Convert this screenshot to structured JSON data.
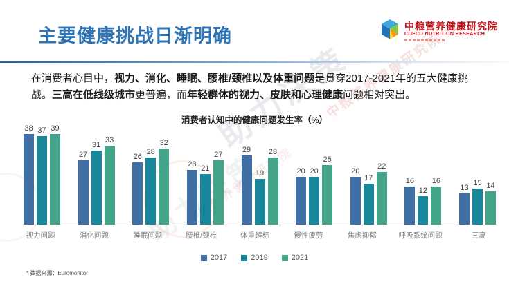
{
  "header": {
    "title": "主要健康挑战日渐明确",
    "logo": {
      "name_cn": "中粮营养健康研究院",
      "name_en": "COFCO NUTRITION RESEARCH",
      "brand_red": "#C3151C"
    }
  },
  "intro": {
    "segments": [
      {
        "text": "在消费者心目中，",
        "bold": false
      },
      {
        "text": "视力、消化、睡眠、腰椎/颈椎以及体重问题",
        "bold": true
      },
      {
        "text": "是贯穿2017-2021年的五大健康挑战。",
        "bold": false
      },
      {
        "text": "三高在低线级城市",
        "bold": true
      },
      {
        "text": "更普遍，而",
        "bold": false
      },
      {
        "text": "年轻群体的视力、皮肤和心理健康",
        "bold": true
      },
      {
        "text": "问题相对突出。",
        "bold": false
      }
    ]
  },
  "chart_data": {
    "type": "bar",
    "title": "消费者认知中的健康问题发生率（%）",
    "categories": [
      "视力问题",
      "消化问题",
      "睡眠问题",
      "腰椎/颈椎",
      "体重超标",
      "慢性疲劳",
      "焦虑抑郁",
      "呼吸系统问题",
      "三高"
    ],
    "series": [
      {
        "name": "2017",
        "color": "#3F6FA4",
        "values": [
          38,
          27,
          26,
          23,
          29,
          20,
          20,
          16,
          13
        ]
      },
      {
        "name": "2019",
        "color": "#19879B",
        "values": [
          37,
          31,
          28,
          21,
          19,
          20,
          17,
          12,
          15
        ]
      },
      {
        "name": "2021",
        "color": "#44A489",
        "values": [
          39,
          33,
          32,
          27,
          28,
          25,
          22,
          16,
          14
        ]
      }
    ],
    "ylim": [
      0,
      42
    ],
    "xlabel": "",
    "ylabel": "",
    "grid": false,
    "legend_position": "bottom",
    "data_labels": true
  },
  "footnote": "* 数据来源：Euromonitor",
  "watermarks": {
    "gray_text": "助力决策",
    "red_text": "中粮营养健康研究院"
  },
  "colors": {
    "title_blue": "#2E74B6",
    "axis_line": "#D6D6D6",
    "category_label": "#808080",
    "value_label": "#444444"
  }
}
